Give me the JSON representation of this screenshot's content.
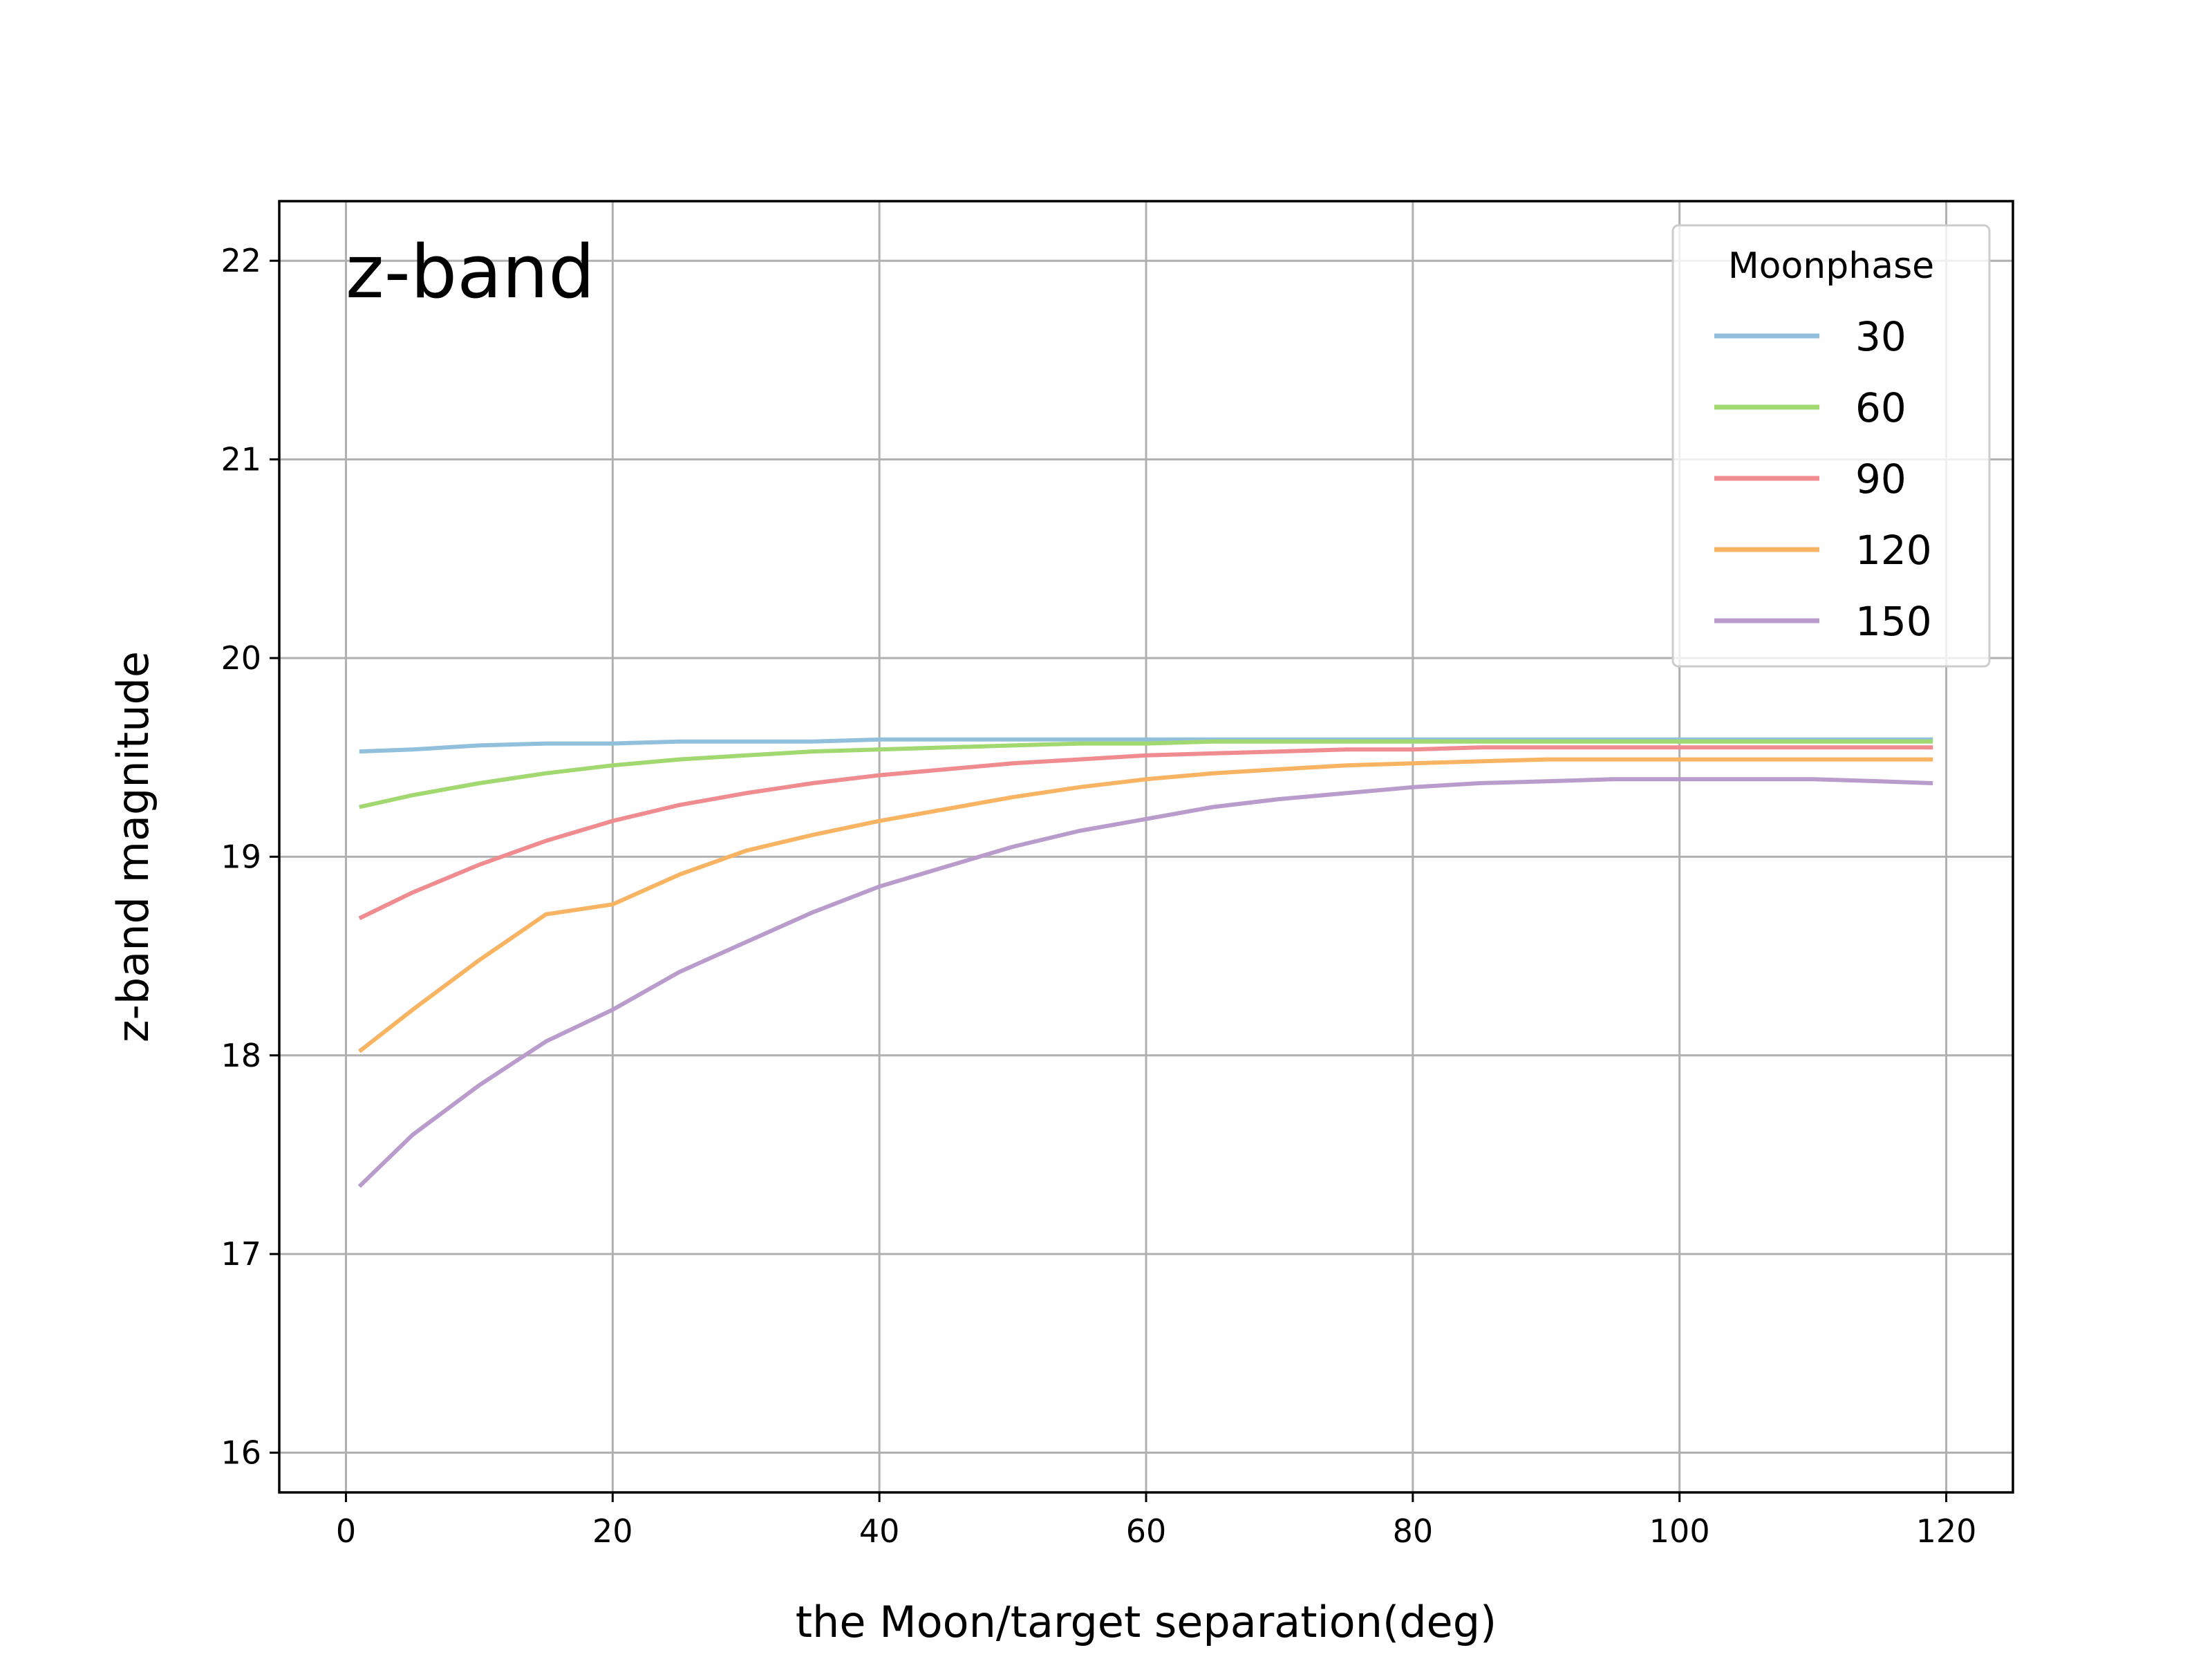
{
  "chart_data": {
    "type": "line",
    "panel_label": "z-band",
    "xlabel": "the Moon/target separation(deg)",
    "ylabel": "z-band magnitude",
    "xlim": [
      -5,
      125
    ],
    "ylim": [
      15.8,
      22.3
    ],
    "xticks": [
      0,
      20,
      40,
      60,
      80,
      100,
      120
    ],
    "yticks": [
      16,
      17,
      18,
      19,
      20,
      21,
      22
    ],
    "grid": true,
    "legend": {
      "title": "Moonphase",
      "placement": "top-right"
    },
    "x": [
      1,
      5,
      10,
      15,
      20,
      25,
      30,
      35,
      40,
      45,
      50,
      55,
      60,
      65,
      70,
      75,
      80,
      85,
      90,
      95,
      100,
      105,
      110,
      115,
      119
    ],
    "series": [
      {
        "name": "30",
        "color": "#92c0dc",
        "values": [
          19.53,
          19.54,
          19.56,
          19.57,
          19.57,
          19.58,
          19.58,
          19.58,
          19.59,
          19.59,
          19.59,
          19.59,
          19.59,
          19.59,
          19.59,
          19.59,
          19.59,
          19.59,
          19.59,
          19.59,
          19.59,
          19.59,
          19.59,
          19.59,
          19.59
        ]
      },
      {
        "name": "60",
        "color": "#a1d870",
        "values": [
          19.25,
          19.31,
          19.37,
          19.42,
          19.46,
          19.49,
          19.51,
          19.53,
          19.54,
          19.55,
          19.56,
          19.57,
          19.57,
          19.58,
          19.58,
          19.58,
          19.58,
          19.58,
          19.58,
          19.58,
          19.58,
          19.58,
          19.58,
          19.58,
          19.58
        ]
      },
      {
        "name": "90",
        "color": "#f08b8f",
        "values": [
          18.69,
          18.82,
          18.96,
          19.08,
          19.18,
          19.26,
          19.32,
          19.37,
          19.41,
          19.44,
          19.47,
          19.49,
          19.51,
          19.52,
          19.53,
          19.54,
          19.54,
          19.55,
          19.55,
          19.55,
          19.55,
          19.55,
          19.55,
          19.55,
          19.55
        ]
      },
      {
        "name": "120",
        "color": "#f8b462",
        "values": [
          18.02,
          18.23,
          18.48,
          18.71,
          18.76,
          18.91,
          19.03,
          19.11,
          19.18,
          19.24,
          19.3,
          19.35,
          19.39,
          19.42,
          19.44,
          19.46,
          19.47,
          19.48,
          19.49,
          19.49,
          19.49,
          19.49,
          19.49,
          19.49,
          19.49
        ]
      },
      {
        "name": "150",
        "color": "#b99ccc",
        "values": [
          17.34,
          17.6,
          17.85,
          18.07,
          18.23,
          18.42,
          18.57,
          18.72,
          18.85,
          18.95,
          19.05,
          19.13,
          19.19,
          19.25,
          19.29,
          19.32,
          19.35,
          19.37,
          19.38,
          19.39,
          19.39,
          19.39,
          19.39,
          19.38,
          19.37
        ]
      }
    ]
  }
}
